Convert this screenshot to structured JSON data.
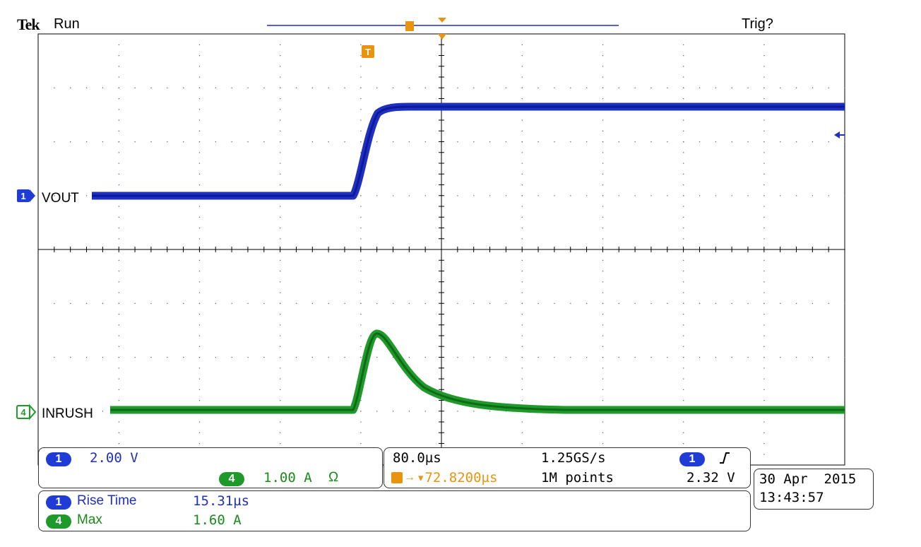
{
  "header": {
    "brand": "Tek",
    "status": "Run",
    "trigger_status": "Trig?"
  },
  "traces": {
    "ch1": {
      "number": "1",
      "label": "VOUT",
      "color": "#1f2fbf"
    },
    "ch4": {
      "number": "4",
      "label": "INRUSH",
      "color": "#1f9a2a"
    },
    "trigger_marker": "T"
  },
  "settings": {
    "ch1_badge": "1",
    "ch1_scale": "2.00 V",
    "ch4_badge": "4",
    "ch4_scale": "1.00 A",
    "ch4_termination": "Ω",
    "timebase": "80.0µs",
    "sample_rate": "1.25GS/s",
    "trigger_position": "▾72.8200µs",
    "record_length": "1M points",
    "trigger_source_badge": "1",
    "trigger_slope_icon": "rising-edge",
    "trigger_level": "2.32 V"
  },
  "measurements": [
    {
      "channel": "1",
      "name": "Rise Time",
      "value": "15.31µs"
    },
    {
      "channel": "4",
      "name": "Max",
      "value": "1.60 A"
    }
  ],
  "datetime": {
    "date": "30 Apr  2015",
    "time": "13:43:57"
  },
  "colors": {
    "ch1": "#1f2fbf",
    "ch4": "#1f9a2a",
    "trigger": "#e8940e"
  }
}
